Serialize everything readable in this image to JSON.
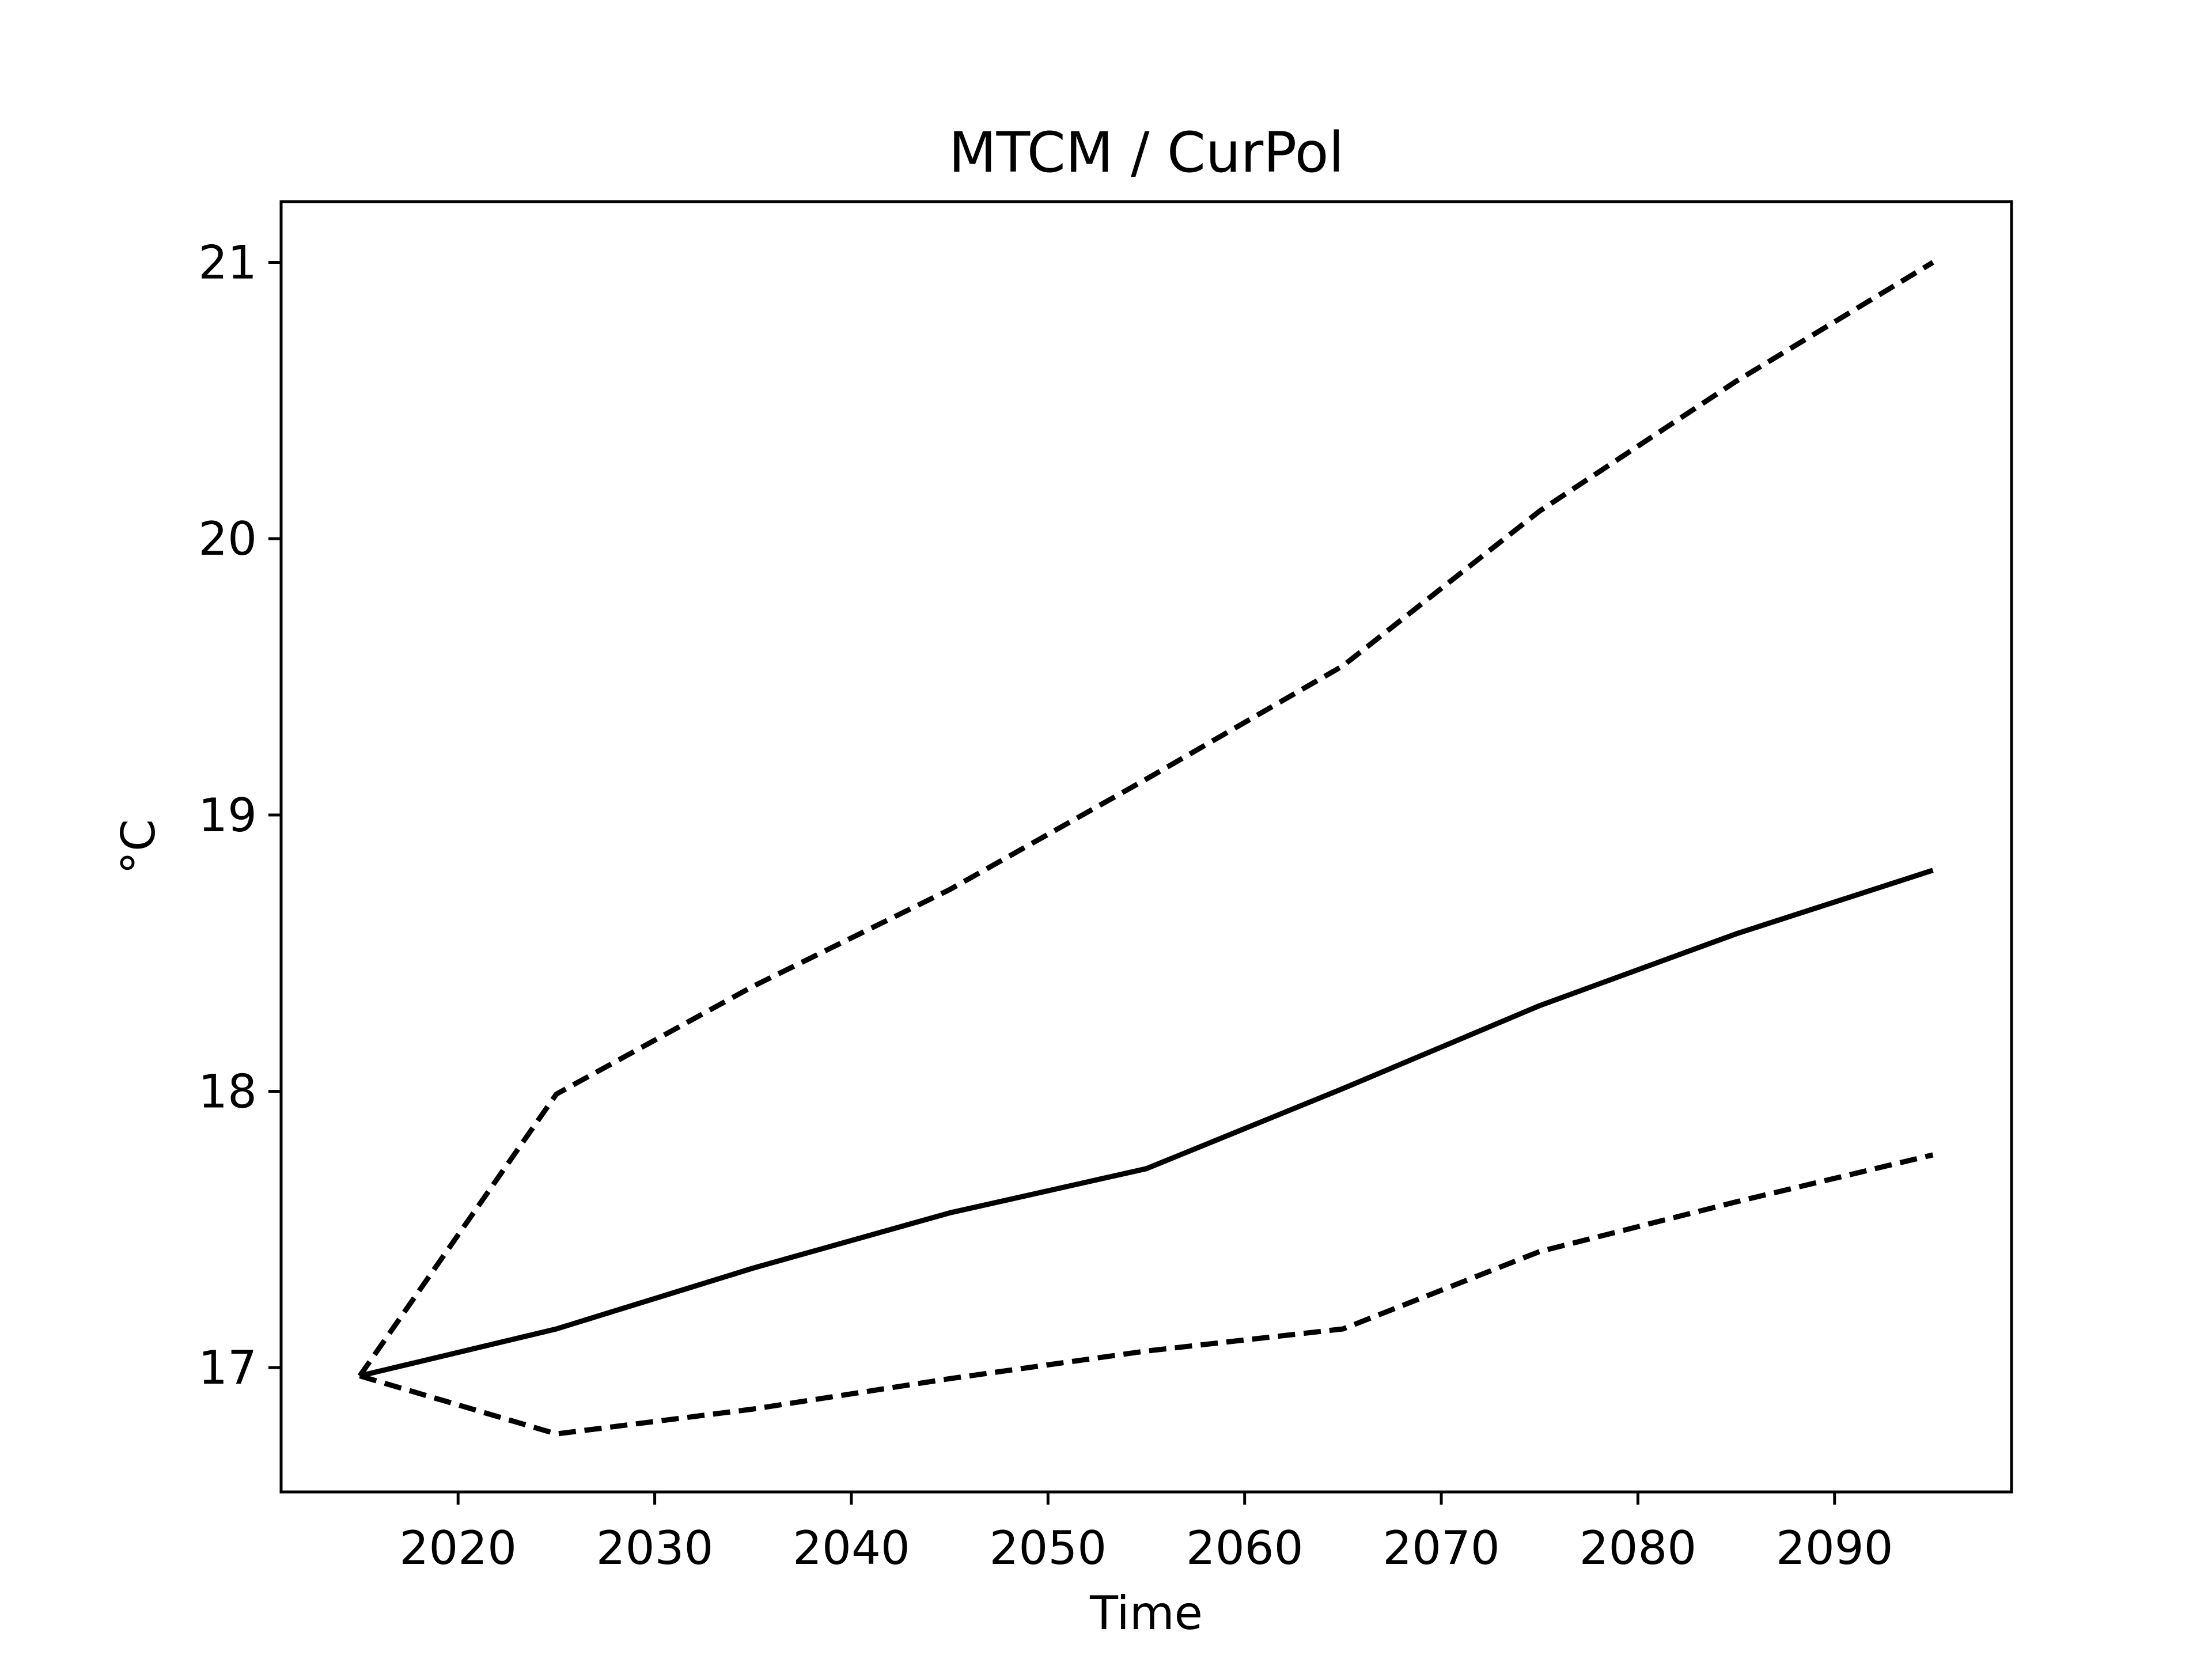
{
  "chart_data": {
    "type": "line",
    "title": "MTCM / CurPol",
    "xlabel": "Time",
    "ylabel": "°C",
    "xlim": [
      2011,
      2099
    ],
    "ylim": [
      16.55,
      21.22
    ],
    "xticks": [
      2020,
      2030,
      2040,
      2050,
      2060,
      2070,
      2080,
      2090
    ],
    "yticks": [
      17,
      18,
      19,
      20,
      21
    ],
    "grid": false,
    "legend": "none",
    "x": [
      2015,
      2025,
      2035,
      2045,
      2055,
      2065,
      2075,
      2085,
      2095
    ],
    "series": [
      {
        "line_style": "dashed",
        "color": "#000000",
        "values": [
          16.97,
          17.99,
          18.38,
          18.73,
          19.13,
          19.54,
          20.1,
          20.57,
          21.0
        ]
      },
      {
        "line_style": "solid",
        "color": "#000000",
        "values": [
          16.97,
          17.14,
          17.36,
          17.56,
          17.72,
          18.01,
          18.31,
          18.57,
          18.8
        ]
      },
      {
        "line_style": "dashed",
        "color": "#000000",
        "values": [
          16.97,
          16.76,
          16.85,
          16.96,
          17.06,
          17.14,
          17.42,
          17.6,
          17.77
        ]
      }
    ]
  }
}
